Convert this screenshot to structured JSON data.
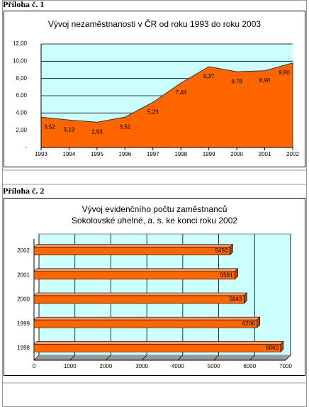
{
  "annex_labels": [
    "Příloha č. 1",
    "Příloha č. 2"
  ],
  "chart_data": [
    {
      "type": "area",
      "title": [
        "Vývoj nezaměstnanosti v ČR od roku 1993 do roku 2003"
      ],
      "categories": [
        "1993",
        "1994",
        "1995",
        "1996",
        "1997",
        "1998",
        "1999",
        "2000",
        "2001",
        "2002"
      ],
      "values": [
        3.52,
        3.19,
        2.93,
        3.52,
        5.23,
        7.48,
        9.37,
        8.78,
        8.9,
        9.8
      ],
      "value_labels": [
        "3,52",
        "3,19",
        "2,93",
        "3,52",
        "5,23",
        "7,48",
        "9,37",
        "8,78",
        "8,90",
        "9,80"
      ],
      "color": "#ff6600",
      "ylim": [
        0,
        12
      ],
      "yticks": [
        {
          "value": 0,
          "label": "-"
        },
        {
          "value": 2,
          "label": "2,00"
        },
        {
          "value": 4,
          "label": "4,00"
        },
        {
          "value": 6,
          "label": "6,00"
        },
        {
          "value": 8,
          "label": "8,00"
        },
        {
          "value": 10,
          "label": "10,00"
        },
        {
          "value": 12,
          "label": "12,00"
        }
      ],
      "grid": true
    },
    {
      "type": "bar",
      "orientation": "horizontal",
      "title": [
        "Vývoj evidenčního počtu zaměstnanců",
        "Sokolovské uhelné, a. s. ke konci roku 2002"
      ],
      "categories": [
        "2002",
        "2001",
        "2000",
        "1999",
        "1998"
      ],
      "values": [
        5450,
        5591,
        5843,
        6206,
        6860
      ],
      "color": "#ff6600",
      "xlim": [
        0,
        7000
      ],
      "xticks": [
        0,
        1000,
        2000,
        3000,
        4000,
        5000,
        6000,
        7000
      ],
      "grid": true
    }
  ]
}
